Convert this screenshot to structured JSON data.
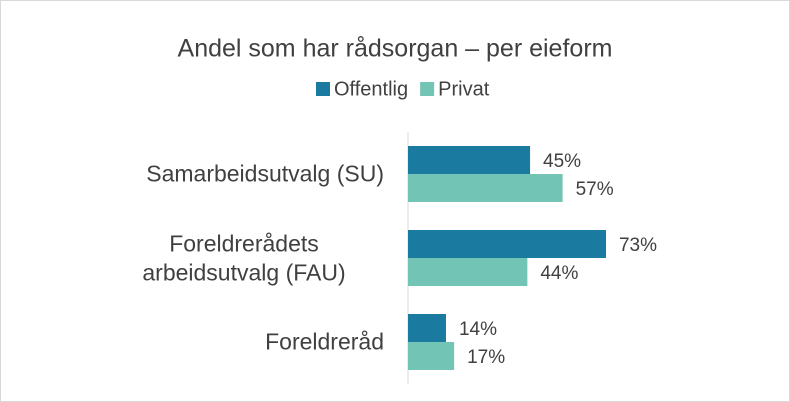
{
  "chart_data": {
    "type": "bar",
    "orientation": "horizontal",
    "title": "Andel som har rådsorgan – per eieform",
    "categories": [
      "Samarbeidsutvalg (SU)",
      "Foreldrerådets arbeidsutvalg (FAU)",
      "Foreldreråd"
    ],
    "series": [
      {
        "name": "Offentlig",
        "color": "#1b7aa0",
        "values": [
          45,
          73,
          14
        ],
        "value_labels": [
          "45%",
          "73%",
          "14%"
        ]
      },
      {
        "name": "Privat",
        "color": "#72c5b4",
        "values": [
          57,
          44,
          17
        ],
        "value_labels": [
          "57%",
          "44%",
          "17%"
        ]
      }
    ],
    "xlim": [
      0,
      80
    ],
    "legend": "top"
  }
}
